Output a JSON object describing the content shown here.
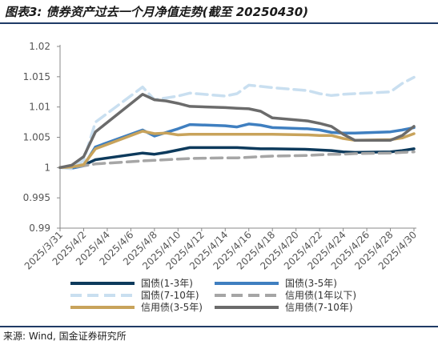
{
  "title": "图表3: 债券资产过去一个月净值走势(截至 20250430)",
  "source": "来源: Wind, 国金证券研究所",
  "chart_data": {
    "type": "line",
    "ylim": [
      0.99,
      1.02
    ],
    "yticks": [
      "0.99",
      "0.995",
      "1",
      "1.005",
      "1.01",
      "1.015",
      "1.02"
    ],
    "ytick_values": [
      0.99,
      0.995,
      1.0,
      1.005,
      1.01,
      1.015,
      1.02
    ],
    "grid": false,
    "legend_position": "bottom",
    "x": [
      "2025/3/31",
      "2025/4/1",
      "2025/4/2",
      "2025/4/3",
      "2025/4/7",
      "2025/4/8",
      "2025/4/9",
      "2025/4/10",
      "2025/4/11",
      "2025/4/14",
      "2025/4/15",
      "2025/4/16",
      "2025/4/17",
      "2025/4/18",
      "2025/4/21",
      "2025/4/22",
      "2025/4/23",
      "2025/4/24",
      "2025/4/25",
      "2025/4/28",
      "2025/4/29",
      "2025/4/30"
    ],
    "xtick_labels": [
      "2025/3/31",
      "2025/4/2",
      "2025/4/4",
      "2025/4/6",
      "2025/4/8",
      "2025/4/10",
      "2025/4/12",
      "2025/4/14",
      "2025/4/16",
      "2025/4/18",
      "2025/4/20",
      "2025/4/22",
      "2025/4/24",
      "2025/4/26",
      "2025/4/28",
      "2025/4/30"
    ],
    "series": [
      {
        "name": "国债(1-3年)",
        "color": "#0d3a5c",
        "dash": "solid",
        "values": [
          1.0,
          1.0,
          1.0004,
          1.0013,
          1.0024,
          1.0022,
          1.0025,
          1.0029,
          1.0033,
          1.0033,
          1.0033,
          1.0032,
          1.0031,
          1.0031,
          1.003,
          1.0029,
          1.0028,
          1.0026,
          1.0025,
          1.0026,
          1.0028,
          1.0031
        ]
      },
      {
        "name": "国债(3-5年)",
        "color": "#3f7fc0",
        "dash": "solid",
        "values": [
          1.0,
          0.9999,
          1.0003,
          1.0034,
          1.0062,
          1.0052,
          1.0058,
          1.0064,
          1.0071,
          1.0069,
          1.0067,
          1.0072,
          1.007,
          1.0066,
          1.0064,
          1.0062,
          1.0058,
          1.0057,
          1.0057,
          1.0059,
          1.0062,
          1.0066
        ]
      },
      {
        "name": "国债(7-10年)",
        "color": "#c9dff0",
        "dash": "dashed",
        "values": [
          1.0,
          0.9998,
          1.0012,
          1.0075,
          1.0133,
          1.0112,
          1.0115,
          1.0118,
          1.0123,
          1.0118,
          1.0122,
          1.0136,
          1.0134,
          1.0132,
          1.0127,
          1.0122,
          1.0119,
          1.0121,
          1.0122,
          1.0125,
          1.0139,
          1.0149
        ]
      },
      {
        "name": "信用债(1年以下)",
        "color": "#a6a6a6",
        "dash": "dashed",
        "values": [
          1.0,
          1.0001,
          1.0003,
          1.0006,
          1.0011,
          1.0012,
          1.0013,
          1.0014,
          1.0015,
          1.0016,
          1.0016,
          1.0017,
          1.0018,
          1.0019,
          1.002,
          1.0021,
          1.0022,
          1.0022,
          1.0023,
          1.0024,
          1.0025,
          1.0026
        ]
      },
      {
        "name": "信用债(3-5年)",
        "color": "#c8a35b",
        "dash": "solid",
        "values": [
          1.0,
          1.0001,
          1.0005,
          1.0031,
          1.006,
          1.0056,
          1.0057,
          1.0054,
          1.0055,
          1.0055,
          1.0055,
          1.0055,
          1.0055,
          1.0055,
          1.0054,
          1.0053,
          1.0053,
          1.0048,
          1.0045,
          1.0046,
          1.0049,
          1.0056
        ]
      },
      {
        "name": "信用债(7-10年)",
        "color": "#6b6b6b",
        "dash": "solid",
        "values": [
          1.0,
          1.0004,
          1.0018,
          1.0059,
          1.0121,
          1.0112,
          1.011,
          1.0106,
          1.0101,
          1.0099,
          1.0098,
          1.0097,
          1.0093,
          1.0082,
          1.0077,
          1.0073,
          1.0068,
          1.0055,
          1.0045,
          1.0045,
          1.0053,
          1.0068
        ]
      }
    ]
  }
}
